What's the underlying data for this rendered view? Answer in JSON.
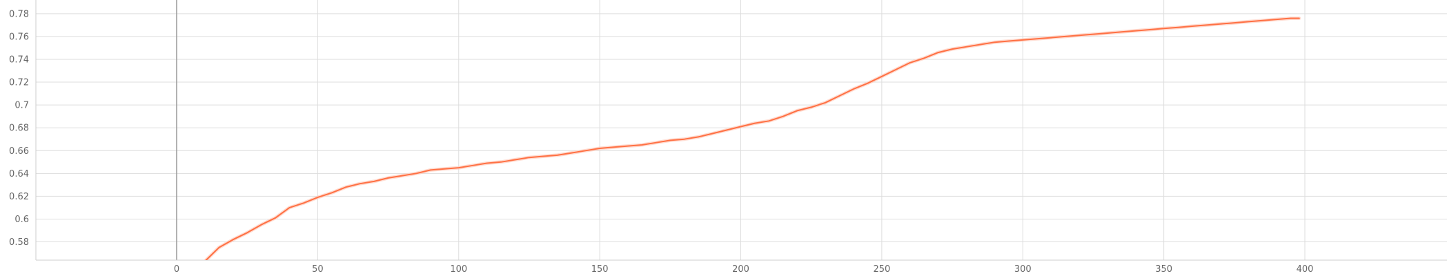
{
  "chart_data": {
    "type": "line",
    "title": "",
    "xlabel": "",
    "ylabel": "",
    "xlim": [
      -50,
      450
    ],
    "ylim": [
      0.564,
      0.792
    ],
    "x_ticks": [
      0,
      50,
      100,
      150,
      200,
      250,
      300,
      350,
      400
    ],
    "x_tick_labels": [
      "0",
      "50",
      "100",
      "150",
      "200",
      "250",
      "300",
      "350",
      "400"
    ],
    "y_ticks": [
      0.58,
      0.6,
      0.62,
      0.64,
      0.66,
      0.68,
      0.7,
      0.72,
      0.74,
      0.76,
      0.78
    ],
    "y_tick_labels": [
      "0.58",
      "0.6",
      "0.62",
      "0.64",
      "0.66",
      "0.68",
      "0.7",
      "0.72",
      "0.74",
      "0.76",
      "0.78"
    ],
    "grid": true,
    "legend": "none",
    "colors": {
      "smoothed": "#ff7043",
      "raw": "#ffccbc",
      "grid": "#dddddd",
      "zero_line": "#999999",
      "axis": "#cccccc"
    },
    "series": [
      {
        "x": [
          10,
          15,
          20,
          25,
          30,
          35,
          40,
          45,
          50,
          55,
          60,
          65,
          70,
          75,
          80,
          85,
          90,
          95,
          100,
          105,
          110,
          115,
          120,
          125,
          130,
          135,
          140,
          145,
          150,
          155,
          160,
          165,
          170,
          175,
          180,
          185,
          190,
          195,
          200,
          205,
          210,
          215,
          220,
          225,
          230,
          235,
          240,
          245,
          250,
          255,
          260,
          265,
          270,
          275,
          280,
          285,
          290,
          295,
          300,
          305,
          310,
          315,
          320,
          325,
          330,
          335,
          340,
          345,
          350,
          355,
          360,
          365,
          370,
          375,
          380,
          385,
          390,
          395,
          398
        ],
        "values": [
          0.563,
          0.575,
          0.582,
          0.588,
          0.595,
          0.601,
          0.61,
          0.614,
          0.619,
          0.623,
          0.628,
          0.631,
          0.633,
          0.636,
          0.638,
          0.64,
          0.643,
          0.644,
          0.645,
          0.647,
          0.649,
          0.65,
          0.652,
          0.654,
          0.655,
          0.656,
          0.658,
          0.66,
          0.662,
          0.663,
          0.664,
          0.665,
          0.667,
          0.669,
          0.67,
          0.672,
          0.675,
          0.678,
          0.681,
          0.684,
          0.686,
          0.69,
          0.695,
          0.698,
          0.702,
          0.708,
          0.714,
          0.719,
          0.725,
          0.731,
          0.737,
          0.741,
          0.746,
          0.749,
          0.751,
          0.753,
          0.755,
          0.756,
          0.757,
          0.758,
          0.759,
          0.76,
          0.761,
          0.762,
          0.763,
          0.764,
          0.765,
          0.766,
          0.767,
          0.768,
          0.769,
          0.77,
          0.771,
          0.772,
          0.773,
          0.774,
          0.775,
          0.776,
          0.776
        ]
      }
    ]
  }
}
